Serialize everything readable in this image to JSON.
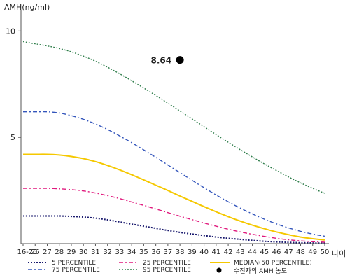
{
  "chart_data": {
    "type": "line",
    "ylabel": "AMH(ng/ml)",
    "xlabel": "나이",
    "ylim": [
      0,
      11
    ],
    "yticks": [
      5,
      10
    ],
    "categories": [
      "16-25",
      "26",
      "27",
      "28",
      "29",
      "30",
      "31",
      "32",
      "33",
      "34",
      "35",
      "36",
      "37",
      "38",
      "39",
      "40",
      "41",
      "42",
      "43",
      "44",
      "45",
      "46",
      "47",
      "48",
      "49",
      "50"
    ],
    "series": [
      {
        "name": "5 PERCENTILE",
        "color": "#1a1a6e",
        "dash": "2,2",
        "width": 2,
        "values": [
          1.3,
          1.3,
          1.3,
          1.3,
          1.28,
          1.25,
          1.2,
          1.12,
          1.02,
          0.92,
          0.82,
          0.72,
          0.62,
          0.53,
          0.45,
          0.38,
          0.31,
          0.25,
          0.2,
          0.15,
          0.11,
          0.08,
          0.06,
          0.04,
          0.03,
          0.02
        ]
      },
      {
        "name": "25 PERCENTILE",
        "color": "#e0197d",
        "dash": "6,3,2,3",
        "width": 1.4,
        "values": [
          2.6,
          2.6,
          2.6,
          2.58,
          2.54,
          2.48,
          2.38,
          2.26,
          2.12,
          1.96,
          1.8,
          1.63,
          1.46,
          1.29,
          1.13,
          0.97,
          0.82,
          0.68,
          0.55,
          0.44,
          0.34,
          0.25,
          0.18,
          0.13,
          0.09,
          0.07
        ]
      },
      {
        "name": "MEDIAN(50 PERCENTILE)",
        "color": "#f5c800",
        "dash": "",
        "width": 2,
        "values": [
          4.2,
          4.2,
          4.2,
          4.17,
          4.1,
          4.0,
          3.86,
          3.68,
          3.47,
          3.24,
          3.0,
          2.75,
          2.5,
          2.24,
          1.99,
          1.74,
          1.5,
          1.27,
          1.06,
          0.87,
          0.7,
          0.55,
          0.42,
          0.31,
          0.23,
          0.17
        ]
      },
      {
        "name": "75 PERCENTILE",
        "color": "#3355bb",
        "dash": "6,3,2,3",
        "width": 1.4,
        "values": [
          6.2,
          6.2,
          6.2,
          6.15,
          6.02,
          5.85,
          5.63,
          5.37,
          5.07,
          4.75,
          4.41,
          4.06,
          3.7,
          3.34,
          2.98,
          2.63,
          2.29,
          1.97,
          1.67,
          1.4,
          1.15,
          0.93,
          0.74,
          0.58,
          0.45,
          0.35
        ]
      },
      {
        "name": "95 PERCENTILE",
        "color": "#2e7d4a",
        "dash": "2,2",
        "width": 1.4,
        "values": [
          9.5,
          9.4,
          9.3,
          9.18,
          9.02,
          8.82,
          8.58,
          8.3,
          7.99,
          7.66,
          7.32,
          6.97,
          6.61,
          6.24,
          5.87,
          5.5,
          5.13,
          4.77,
          4.42,
          4.08,
          3.75,
          3.44,
          3.14,
          2.86,
          2.6,
          2.37
        ]
      }
    ],
    "patient": {
      "name": "수진자의 AMH 농도",
      "x": "38",
      "value": 8.64,
      "label": "8.64",
      "color": "#000000"
    }
  }
}
